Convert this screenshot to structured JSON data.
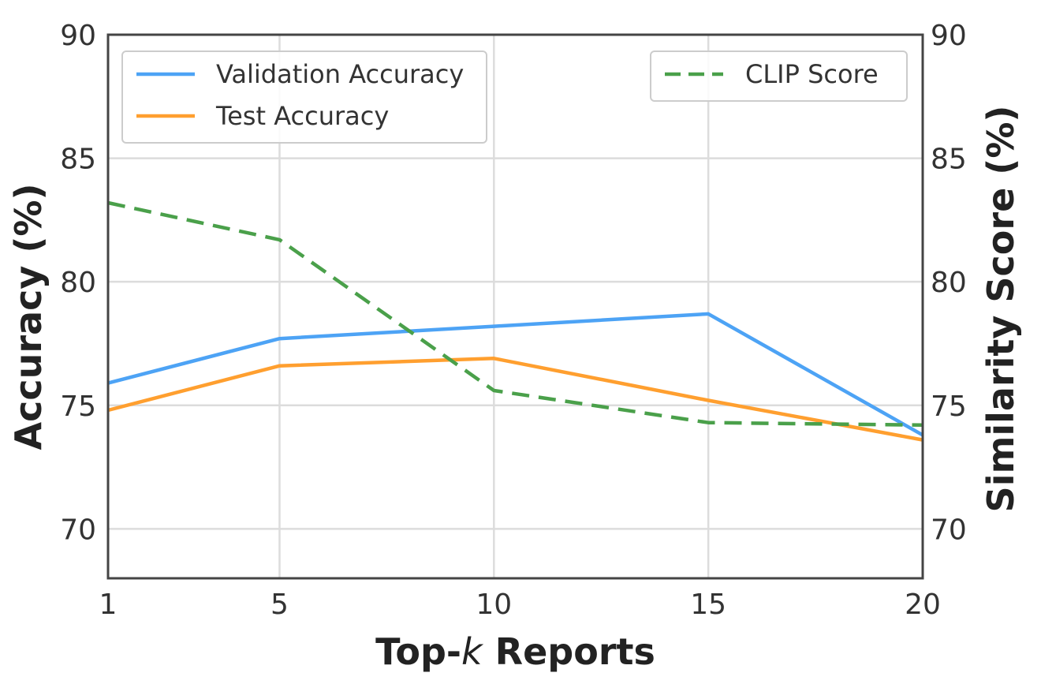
{
  "chart_data": {
    "type": "line",
    "x": [
      1,
      5,
      10,
      15,
      20
    ],
    "xlim": [
      1,
      20
    ],
    "ylim": [
      68,
      90
    ],
    "y2lim": [
      68,
      90
    ],
    "x_ticks": [
      "1",
      "5",
      "10",
      "15",
      "20"
    ],
    "y_ticks": [
      "70",
      "75",
      "80",
      "85",
      "90"
    ],
    "y2_ticks": [
      "70",
      "75",
      "80",
      "85",
      "90"
    ],
    "xlabel_pre": "Top-",
    "xlabel_var": "k",
    "xlabel_post": " Reports",
    "ylabel": "Accuracy (%)",
    "y2label": "Similarity Score (%)",
    "grid": true,
    "series": [
      {
        "name": "Validation Accuracy",
        "axis": "left",
        "style": "solid",
        "color": "#4da3f5",
        "values": [
          75.9,
          77.7,
          78.2,
          78.7,
          73.8
        ]
      },
      {
        "name": "Test Accuracy",
        "axis": "left",
        "style": "solid",
        "color": "#ff9f2f",
        "values": [
          74.8,
          76.6,
          76.9,
          75.2,
          73.6
        ]
      },
      {
        "name": "CLIP Score",
        "axis": "right",
        "style": "dashed",
        "color": "#4aa04a",
        "values": [
          83.2,
          81.7,
          75.6,
          74.3,
          74.2
        ]
      }
    ],
    "legends": [
      {
        "placement": "top-left",
        "entries": [
          "Validation Accuracy",
          "Test Accuracy"
        ]
      },
      {
        "placement": "top-right",
        "entries": [
          "CLIP Score"
        ]
      }
    ]
  }
}
